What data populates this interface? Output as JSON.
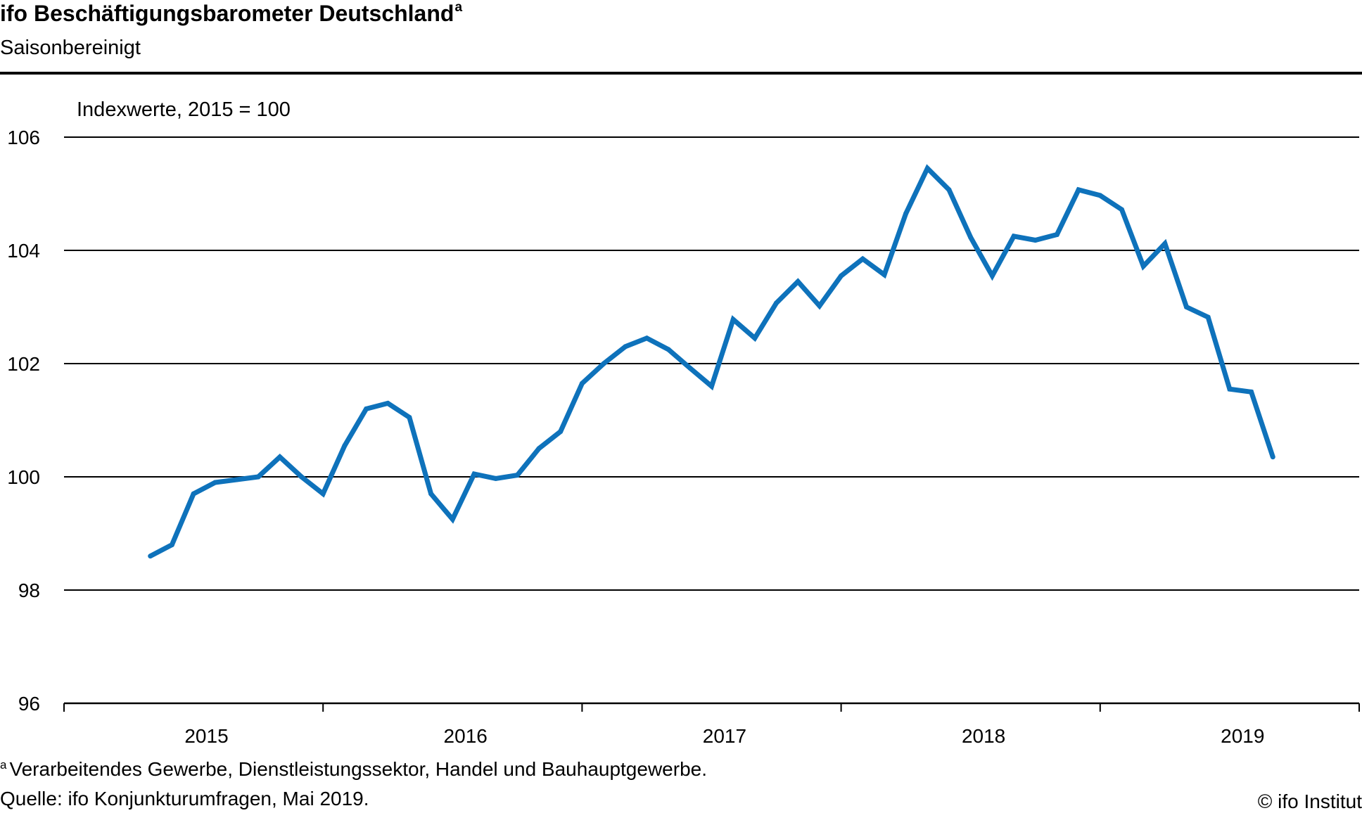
{
  "header": {
    "title": "ifo Beschäftigungsbarometer Deutschland",
    "title_marker": "a",
    "subtitle": "Saisonbereinigt"
  },
  "footer": {
    "footnote_marker": "a",
    "footnote": "Verarbeitendes Gewerbe, Dienstleistungssektor, Handel und Bauhauptgewerbe.",
    "source": "Quelle: ifo Konjunkturumfragen, Mai 2019.",
    "copyright": "© ifo Institut"
  },
  "chart_data": {
    "type": "line",
    "ylabel": "Indexwerte, 2015 = 100",
    "ylim": [
      96,
      106
    ],
    "yticks": [
      96,
      98,
      100,
      102,
      104,
      106
    ],
    "xtick_labels": [
      "2015",
      "2016",
      "2017",
      "2018",
      "2019"
    ],
    "grid": "horizontal",
    "series_color": "#0E72BB",
    "x": [
      "2015-01",
      "2015-02",
      "2015-03",
      "2015-04",
      "2015-05",
      "2015-06",
      "2015-07",
      "2015-08",
      "2015-09",
      "2015-10",
      "2015-11",
      "2015-12",
      "2016-01",
      "2016-02",
      "2016-03",
      "2016-04",
      "2016-05",
      "2016-06",
      "2016-07",
      "2016-08",
      "2016-09",
      "2016-10",
      "2016-11",
      "2016-12",
      "2017-01",
      "2017-02",
      "2017-03",
      "2017-04",
      "2017-05",
      "2017-06",
      "2017-07",
      "2017-08",
      "2017-09",
      "2017-10",
      "2017-11",
      "2017-12",
      "2018-01",
      "2018-02",
      "2018-03",
      "2018-04",
      "2018-05",
      "2018-06",
      "2018-07",
      "2018-08",
      "2018-09",
      "2018-10",
      "2018-11",
      "2018-12",
      "2019-01",
      "2019-02",
      "2019-03",
      "2019-04",
      "2019-05"
    ],
    "values": [
      98.6,
      98.8,
      99.7,
      99.9,
      99.95,
      100.0,
      100.35,
      100.0,
      99.7,
      100.55,
      101.2,
      101.3,
      101.05,
      99.7,
      99.25,
      100.05,
      99.97,
      100.03,
      100.5,
      100.8,
      101.65,
      102.0,
      102.3,
      102.45,
      102.25,
      101.92,
      101.6,
      102.78,
      102.45,
      103.07,
      103.45,
      103.02,
      103.55,
      103.85,
      103.57,
      104.65,
      105.45,
      105.07,
      104.23,
      103.55,
      104.25,
      104.18,
      104.28,
      105.07,
      104.97,
      104.72,
      103.72,
      104.12,
      103.0,
      102.82,
      101.55,
      101.5,
      100.35
    ]
  }
}
